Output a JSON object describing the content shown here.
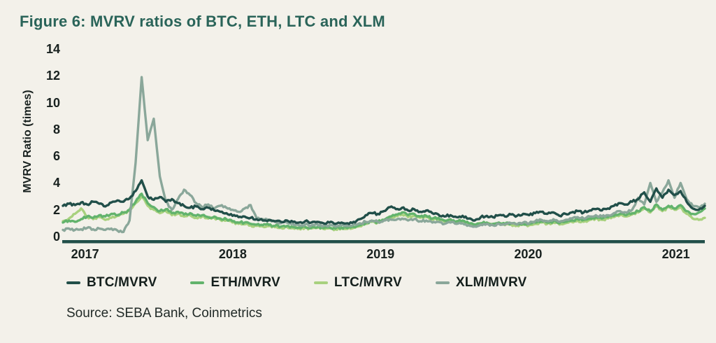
{
  "page": {
    "background": "#f3f1ea"
  },
  "title": "Figure 6: MVRV ratios of BTC, ETH, LTC and XLM",
  "title_color": "#2a6459",
  "source": "Source: SEBA Bank, Coinmetrics",
  "chart_data": {
    "type": "line",
    "title": "Figure 6: MVRV ratios of BTC, ETH, LTC and XLM",
    "xlabel": "",
    "ylabel": "MVRV Ratio (times)",
    "ylim": [
      0,
      14
    ],
    "yticks": [
      0,
      2,
      4,
      6,
      8,
      10,
      12,
      14
    ],
    "xticks": [
      2017,
      2018,
      2019,
      2020,
      2021
    ],
    "grid": false,
    "legend_position": "bottom",
    "axis_line_color": "#214f49",
    "x_start": 2016.85,
    "x_step": 0.041,
    "x_end": 2021.196,
    "series": [
      {
        "name": "BTC/MVRV",
        "color": "#214f49",
        "values": [
          2.3,
          2.45,
          2.35,
          2.55,
          2.4,
          2.6,
          2.45,
          2.25,
          2.55,
          2.7,
          2.6,
          2.85,
          3.4,
          4.2,
          3.0,
          2.75,
          2.95,
          2.6,
          2.8,
          2.5,
          2.3,
          2.15,
          2.25,
          2.05,
          2.15,
          1.95,
          1.85,
          1.75,
          1.55,
          1.45,
          1.5,
          1.4,
          1.3,
          1.2,
          1.25,
          1.15,
          1.1,
          1.2,
          1.1,
          1.05,
          1.15,
          1.05,
          1.1,
          1.0,
          1.05,
          0.95,
          1.05,
          1.0,
          1.1,
          1.3,
          1.6,
          1.75,
          1.7,
          1.9,
          2.2,
          2.05,
          2.15,
          1.95,
          2.05,
          1.85,
          1.95,
          1.75,
          1.65,
          1.5,
          1.6,
          1.45,
          1.55,
          1.35,
          1.2,
          1.45,
          1.55,
          1.45,
          1.6,
          1.5,
          1.65,
          1.55,
          1.7,
          1.6,
          1.75,
          1.85,
          1.7,
          1.8,
          1.55,
          1.7,
          1.8,
          1.9,
          1.8,
          1.95,
          2.05,
          1.95,
          2.1,
          2.3,
          2.5,
          2.4,
          2.6,
          2.8,
          3.3,
          2.6,
          3.6,
          2.9,
          3.5,
          3.1,
          3.4,
          2.6,
          2.1,
          2.0,
          2.3
        ]
      },
      {
        "name": "ETH/MVRV",
        "color": "#62b36c",
        "values": [
          1.05,
          1.2,
          1.1,
          1.3,
          1.5,
          1.4,
          1.6,
          1.5,
          1.7,
          1.6,
          1.8,
          2.0,
          2.6,
          3.2,
          2.5,
          2.2,
          1.9,
          2.05,
          1.75,
          1.85,
          1.65,
          1.75,
          1.55,
          1.6,
          1.45,
          1.5,
          1.35,
          1.3,
          1.15,
          1.05,
          1.05,
          0.95,
          0.9,
          0.85,
          0.88,
          0.8,
          0.75,
          0.8,
          0.72,
          0.68,
          0.72,
          0.65,
          0.7,
          0.63,
          0.68,
          0.6,
          0.68,
          0.64,
          0.72,
          0.85,
          1.0,
          1.15,
          1.1,
          1.25,
          1.5,
          1.65,
          1.8,
          1.6,
          1.7,
          1.5,
          1.55,
          1.35,
          1.4,
          1.2,
          1.3,
          1.15,
          1.2,
          1.0,
          0.9,
          1.0,
          1.05,
          0.95,
          1.05,
          0.95,
          1.0,
          0.9,
          1.0,
          0.95,
          1.05,
          1.15,
          1.05,
          1.15,
          1.0,
          1.1,
          1.2,
          1.3,
          1.25,
          1.35,
          1.45,
          1.35,
          1.45,
          1.55,
          1.7,
          1.6,
          1.75,
          1.9,
          2.2,
          1.9,
          2.4,
          2.0,
          2.3,
          2.1,
          2.35,
          1.9,
          1.7,
          1.8,
          2.1
        ]
      },
      {
        "name": "LTC/MVRV",
        "color": "#a8d17e",
        "values": [
          1.15,
          1.35,
          1.7,
          2.1,
          1.5,
          1.3,
          1.45,
          1.25,
          1.4,
          1.55,
          1.7,
          1.9,
          2.5,
          3.0,
          2.3,
          2.0,
          1.75,
          1.9,
          1.6,
          1.7,
          1.5,
          1.6,
          1.4,
          1.5,
          1.35,
          1.4,
          1.25,
          1.2,
          1.05,
          0.95,
          0.92,
          0.85,
          0.8,
          0.75,
          0.78,
          0.7,
          0.66,
          0.71,
          0.64,
          0.6,
          0.66,
          0.6,
          0.65,
          0.58,
          0.63,
          0.55,
          0.62,
          0.58,
          0.66,
          0.78,
          0.95,
          1.1,
          1.05,
          1.2,
          1.4,
          1.55,
          1.65,
          1.45,
          1.55,
          1.4,
          1.45,
          1.25,
          1.3,
          1.1,
          1.2,
          1.05,
          1.1,
          0.95,
          0.85,
          0.95,
          1.0,
          0.9,
          0.95,
          0.85,
          0.9,
          0.82,
          0.9,
          0.85,
          0.95,
          1.05,
          0.95,
          1.05,
          0.9,
          1.0,
          1.1,
          1.2,
          1.1,
          1.25,
          1.35,
          1.25,
          1.35,
          1.45,
          1.6,
          1.5,
          1.65,
          1.8,
          2.1,
          1.8,
          2.25,
          1.9,
          2.2,
          2.0,
          2.2,
          1.7,
          1.35,
          1.25,
          1.4
        ]
      },
      {
        "name": "XLM/MVRV",
        "color": "#8aa79a",
        "values": [
          0.5,
          0.6,
          0.5,
          0.55,
          0.65,
          0.55,
          0.6,
          0.5,
          0.6,
          0.45,
          0.35,
          1.2,
          5.5,
          11.9,
          7.2,
          8.8,
          4.5,
          2.6,
          2.0,
          2.8,
          3.5,
          3.1,
          2.5,
          2.2,
          2.4,
          2.1,
          2.3,
          2.15,
          2.0,
          1.85,
          2.1,
          2.35,
          1.35,
          1.3,
          1.2,
          1.1,
          1.0,
          1.05,
          0.95,
          0.85,
          0.9,
          0.82,
          0.92,
          0.8,
          0.85,
          0.75,
          0.85,
          0.8,
          0.9,
          1.0,
          1.1,
          1.2,
          1.1,
          1.2,
          1.3,
          1.25,
          1.35,
          1.2,
          1.3,
          1.15,
          1.2,
          1.05,
          1.1,
          0.95,
          1.05,
          0.95,
          1.0,
          0.85,
          0.75,
          0.9,
          0.95,
          0.85,
          0.95,
          0.9,
          1.0,
          0.9,
          1.05,
          1.0,
          1.15,
          1.25,
          1.15,
          1.3,
          1.1,
          1.25,
          1.35,
          1.45,
          1.35,
          1.5,
          1.6,
          1.5,
          1.6,
          1.75,
          1.9,
          1.8,
          2.0,
          2.9,
          2.4,
          4.0,
          2.6,
          3.3,
          4.2,
          2.9,
          4.0,
          2.8,
          2.3,
          2.2,
          2.45
        ]
      }
    ]
  }
}
